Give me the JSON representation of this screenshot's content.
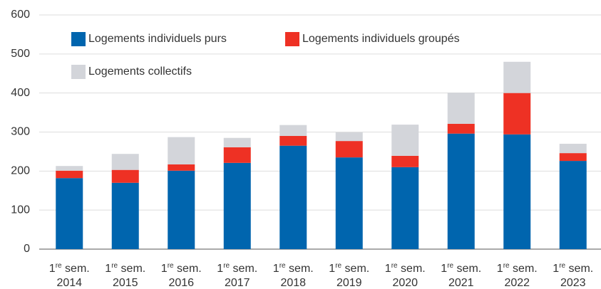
{
  "chart_data": {
    "type": "stacked_bar",
    "categories": [
      "1re sem. 2014",
      "1re sem. 2015",
      "1re sem. 2016",
      "1re sem. 2017",
      "1re sem. 2018",
      "1re sem. 2019",
      "1re sem. 2020",
      "1re sem. 2021",
      "1re sem. 2022",
      "1re sem. 2023"
    ],
    "series": [
      {
        "name": "Logements individuels purs",
        "color": "#0065ae",
        "values": [
          182,
          170,
          201,
          221,
          265,
          235,
          210,
          296,
          294,
          226
        ]
      },
      {
        "name": "Logements individuels groupés",
        "color": "#ee3124",
        "values": [
          19,
          33,
          16,
          40,
          25,
          42,
          29,
          25,
          106,
          20
        ]
      },
      {
        "name": "Logements collectifs",
        "color": "#d3d5da",
        "values": [
          12,
          41,
          70,
          24,
          28,
          22,
          80,
          80,
          80,
          24
        ]
      }
    ],
    "ylim": [
      0,
      600
    ],
    "yticks": [
      0,
      100,
      200,
      300,
      400,
      500,
      600
    ],
    "grid": true,
    "legend": "upper left"
  }
}
